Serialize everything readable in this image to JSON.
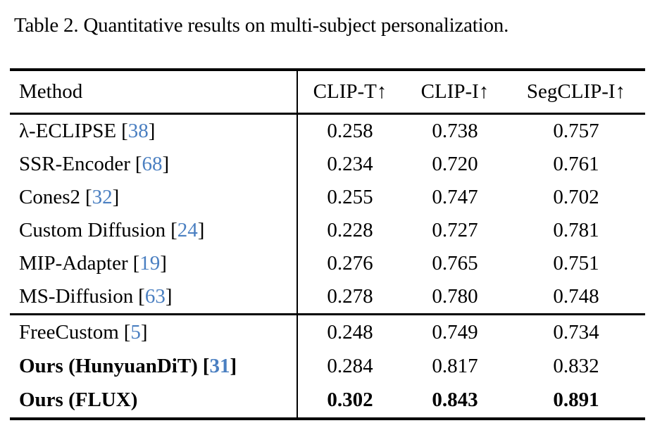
{
  "caption": "Table 2. Quantitative results on multi-subject personalization.",
  "colors": {
    "citation": "#4a7fc1",
    "text": "#000000",
    "rule": "#000000"
  },
  "brackets": {
    "open": "[",
    "close": "]"
  },
  "header": {
    "method": "Method",
    "metrics": [
      "CLIP-T↑",
      "CLIP-I↑",
      "SegCLIP-I↑"
    ]
  },
  "sections": [
    {
      "rows": [
        {
          "method": "λ-ECLIPSE",
          "cite": "38",
          "values": [
            "0.258",
            "0.738",
            "0.757"
          ]
        },
        {
          "method": "SSR-Encoder",
          "cite": "68",
          "values": [
            "0.234",
            "0.720",
            "0.761"
          ]
        },
        {
          "method": "Cones2",
          "cite": "32",
          "values": [
            "0.255",
            "0.747",
            "0.702"
          ]
        },
        {
          "method": "Custom Diffusion",
          "cite": "24",
          "values": [
            "0.228",
            "0.727",
            "0.781"
          ]
        },
        {
          "method": "MIP-Adapter",
          "cite": "19",
          "values": [
            "0.276",
            "0.765",
            "0.751"
          ]
        },
        {
          "method": "MS-Diffusion",
          "cite": "63",
          "values": [
            "0.278",
            "0.780",
            "0.748"
          ]
        }
      ]
    },
    {
      "rows": [
        {
          "method": "FreeCustom",
          "cite": "5",
          "values": [
            "0.248",
            "0.749",
            "0.734"
          ]
        },
        {
          "method": "Ours (HunyuanDiT)",
          "cite": "31",
          "values": [
            "0.284",
            "0.817",
            "0.832"
          ]
        },
        {
          "method": "Ours (FLUX)",
          "values": [
            "0.302",
            "0.843",
            "0.891"
          ]
        }
      ]
    }
  ]
}
